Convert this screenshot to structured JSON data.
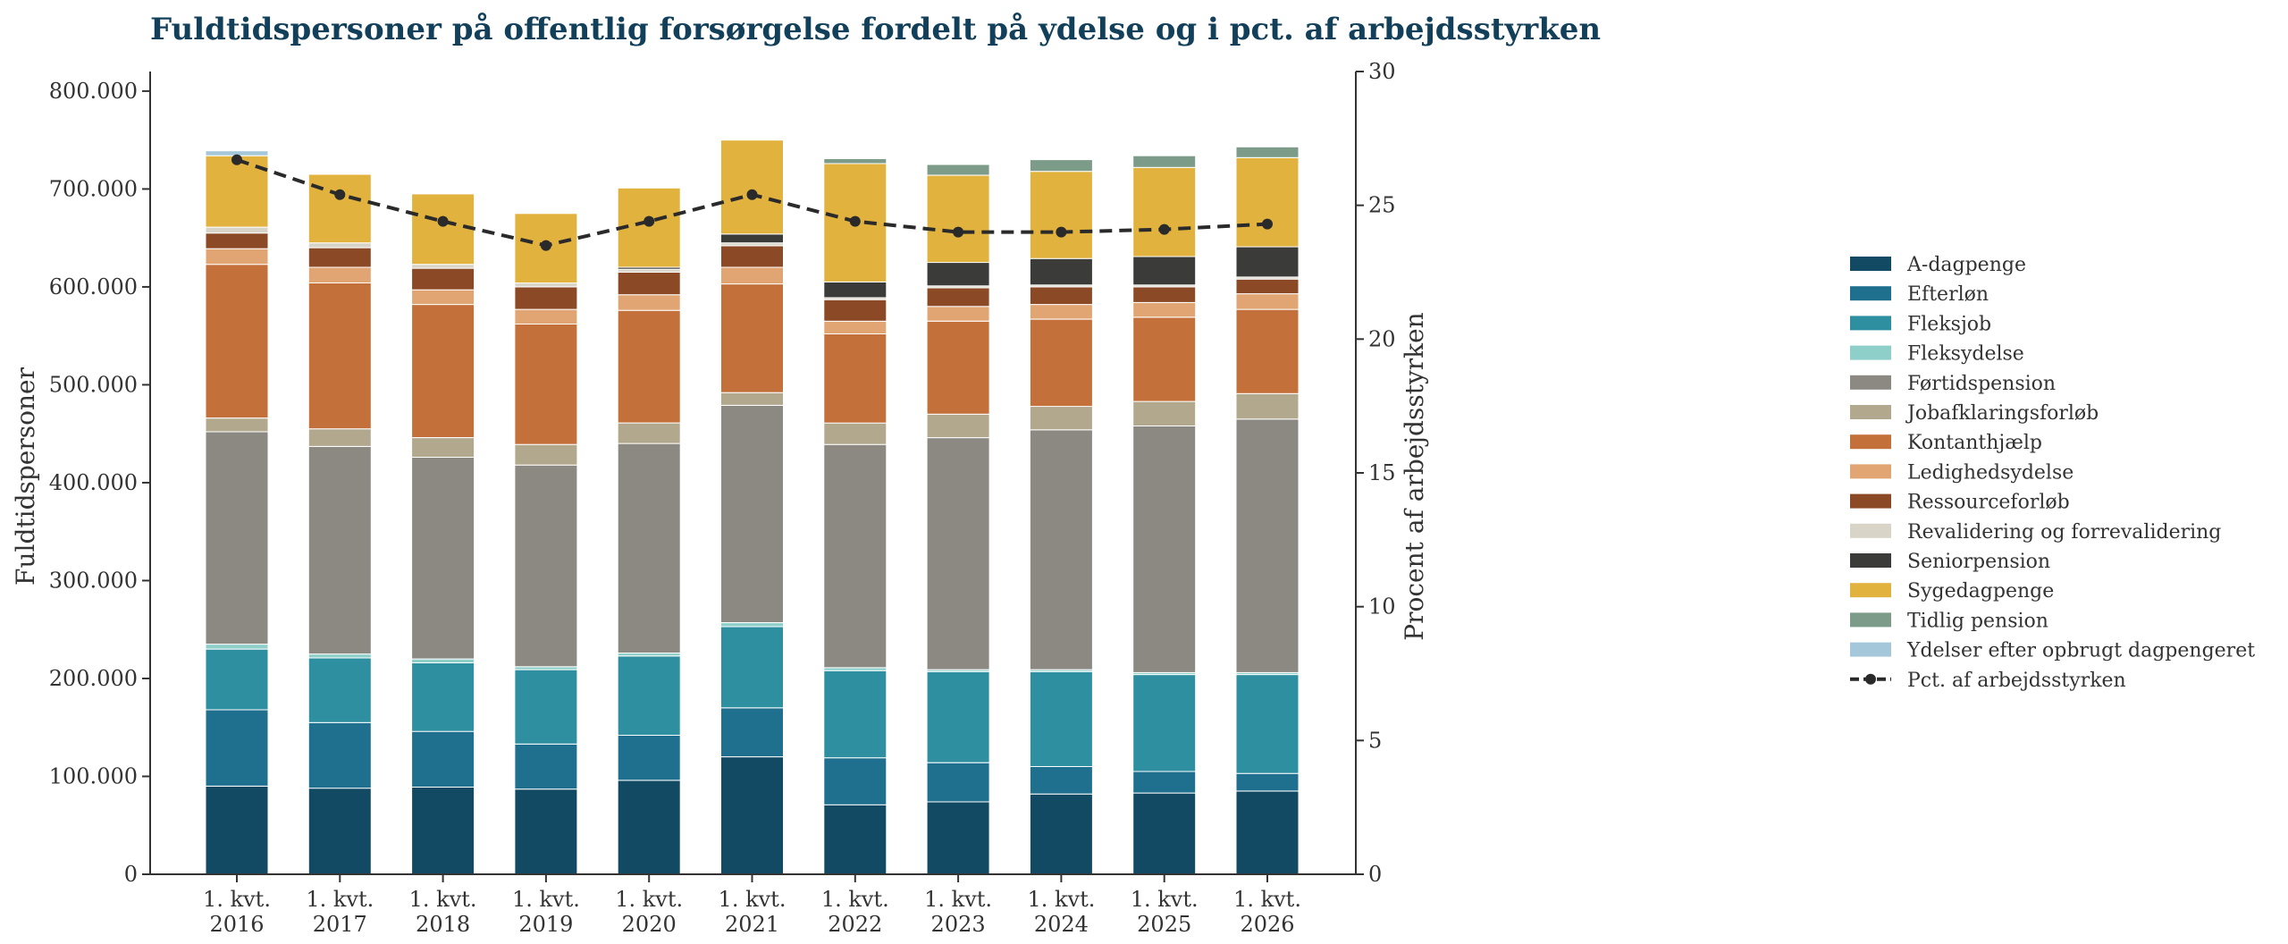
{
  "chart_data": {
    "type": "bar",
    "stacked": true,
    "title": "Fuldtidspersoner på offentlig forsørgelse fordelt på ydelse og i pct. af arbejdsstyrken",
    "ylabel": "Fuldtidspersoner",
    "ylabel_right": "Procent af arbejdsstyrken",
    "ylim": [
      0,
      820000
    ],
    "ylim_right": [
      0,
      30
    ],
    "yticks": [
      0,
      100000,
      200000,
      300000,
      400000,
      500000,
      600000,
      700000,
      800000
    ],
    "yticks_labels": [
      "0",
      "100.000",
      "200.000",
      "300.000",
      "400.000",
      "500.000",
      "600.000",
      "700.000",
      "800.000"
    ],
    "yticks_right": [
      0,
      5,
      10,
      15,
      20,
      25,
      30
    ],
    "yticks_right_labels": [
      "0",
      "5",
      "10",
      "15",
      "20",
      "25",
      "30"
    ],
    "legend_position": "right",
    "grid": false,
    "categories": [
      [
        "1. kvt.",
        "2016"
      ],
      [
        "1. kvt.",
        "2017"
      ],
      [
        "1. kvt.",
        "2018"
      ],
      [
        "1. kvt.",
        "2019"
      ],
      [
        "1. kvt.",
        "2020"
      ],
      [
        "1. kvt.",
        "2021"
      ],
      [
        "1. kvt.",
        "2022"
      ],
      [
        "1. kvt.",
        "2023"
      ],
      [
        "1. kvt.",
        "2024"
      ],
      [
        "1. kvt.",
        "2025"
      ],
      [
        "1. kvt.",
        "2026"
      ]
    ],
    "series": [
      {
        "name": "A-dagpenge",
        "color": "#134a63",
        "values": [
          90000,
          88000,
          89000,
          87000,
          96000,
          120000,
          71000,
          74000,
          82000,
          83000,
          85000
        ]
      },
      {
        "name": "Efterløn",
        "color": "#1f6f8f",
        "values": [
          78000,
          67000,
          57000,
          46000,
          46000,
          50000,
          48000,
          40000,
          28000,
          22000,
          18000
        ]
      },
      {
        "name": "Fleksjob",
        "color": "#2e8fa0",
        "values": [
          62000,
          66000,
          70000,
          76000,
          81000,
          83000,
          89000,
          93000,
          97000,
          99000,
          101000
        ]
      },
      {
        "name": "Fleksydelse",
        "color": "#8ecfca",
        "values": [
          5000,
          4000,
          4000,
          3000,
          3000,
          4000,
          3000,
          2000,
          2000,
          2000,
          2000
        ]
      },
      {
        "name": "Førtidspension",
        "color": "#8b8981",
        "values": [
          217000,
          212000,
          206000,
          206000,
          214000,
          222000,
          228000,
          237000,
          245000,
          252000,
          259000
        ]
      },
      {
        "name": "Jobafklaringsforløb",
        "color": "#b2a88e",
        "values": [
          14000,
          18000,
          20000,
          21000,
          21000,
          13000,
          22000,
          24000,
          24000,
          25000,
          26000
        ]
      },
      {
        "name": "Kontanthjælp",
        "color": "#c4703b",
        "values": [
          157000,
          149000,
          136000,
          123000,
          115000,
          111000,
          91000,
          95000,
          89000,
          86000,
          86000
        ]
      },
      {
        "name": "Ledighedsydelse",
        "color": "#e1a574",
        "values": [
          16000,
          16000,
          15000,
          15000,
          16000,
          17000,
          13000,
          15000,
          15000,
          15000,
          16000
        ]
      },
      {
        "name": "Ressourceforløb",
        "color": "#8b4a25",
        "values": [
          16000,
          20000,
          22000,
          23000,
          23000,
          22000,
          22000,
          19000,
          18000,
          16000,
          15000
        ]
      },
      {
        "name": "Revalidering og forrevalidering",
        "color": "#d8d4c7",
        "values": [
          6000,
          5000,
          4000,
          4000,
          3000,
          3000,
          2000,
          2000,
          2000,
          2000,
          2000
        ]
      },
      {
        "name": "Seniorpension",
        "color": "#3b3b39",
        "values": [
          0,
          0,
          0,
          0,
          2000,
          9000,
          16000,
          24000,
          27000,
          29000,
          31000
        ]
      },
      {
        "name": "Sygedagpenge",
        "color": "#e2b23f",
        "values": [
          73000,
          70000,
          72000,
          71000,
          81000,
          96000,
          121000,
          89000,
          89000,
          91000,
          91000
        ]
      },
      {
        "name": "Tidlig pension",
        "color": "#7c9c89",
        "values": [
          0,
          0,
          0,
          0,
          0,
          0,
          5000,
          11000,
          12000,
          12000,
          11000
        ]
      },
      {
        "name": "Ydelser efter opbrugt dagpengeret",
        "color": "#a4c7d9",
        "values": [
          5000,
          0,
          0,
          0,
          0,
          0,
          0,
          0,
          0,
          0,
          0
        ]
      }
    ],
    "line_series": {
      "name": "Pct. af arbejdsstyrken",
      "color": "#2a2a2a",
      "axis": "right",
      "values": [
        26.7,
        25.4,
        24.4,
        23.5,
        24.4,
        25.4,
        24.4,
        24.0,
        24.0,
        24.1,
        24.3
      ]
    }
  }
}
